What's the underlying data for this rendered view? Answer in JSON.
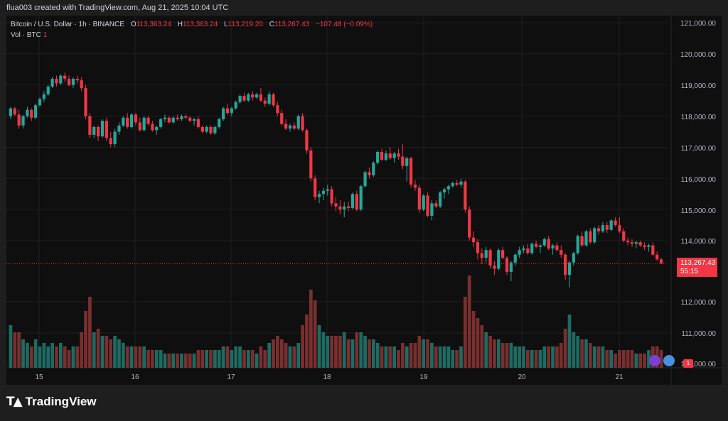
{
  "header": {
    "caption": "flua003 created with TradingView.com, Aug 21, 2025 10:04 UTC"
  },
  "legend": {
    "symbol": "Bitcoin / U.S. Dollar · 1h · BINANCE",
    "open_label": "O",
    "open": "113,363.24",
    "high_label": "H",
    "high": "113,363.24",
    "low_label": "L",
    "low": "113,219.20",
    "close_label": "C",
    "close": "113,267.43",
    "change": "−107.48 (−0.09%)",
    "volume_label": "Vol · BTC",
    "volume_value": "1"
  },
  "last_price": {
    "price": "113,267.43",
    "countdown": "55:15"
  },
  "volume_badge": "1",
  "footer": {
    "brand": "TradingView"
  },
  "colors": {
    "up": "#26a69a",
    "down": "#f23645",
    "vol_up": "#1e6b63",
    "vol_down": "#7a2f2f",
    "background": "#0f0f0f"
  },
  "chart_data": {
    "type": "candlestick",
    "timeframe": "1h",
    "y_axis_ticks": [
      "121,000.00",
      "120,000.00",
      "119,000.00",
      "118,000.00",
      "117,000.00",
      "116,000.00",
      "115,000.00",
      "114,000.00",
      "112,000.00",
      "111,000.00",
      "110,000.00"
    ],
    "price_range": [
      112600,
      121000
    ],
    "x_axis_ticks": [
      "15",
      "16",
      "17",
      "18",
      "19",
      "20",
      "21"
    ],
    "last_price": 113267.43,
    "candles": [
      [
        118000,
        118300,
        117900,
        118250,
        0.6
      ],
      [
        118250,
        118300,
        118000,
        118050,
        0.5
      ],
      [
        118050,
        118200,
        117600,
        117700,
        0.5
      ],
      [
        117700,
        118050,
        117600,
        118000,
        0.4
      ],
      [
        118000,
        118300,
        117950,
        118200,
        0.35
      ],
      [
        118200,
        118250,
        117850,
        117950,
        0.3
      ],
      [
        117950,
        118400,
        117900,
        118350,
        0.4
      ],
      [
        118350,
        118600,
        118300,
        118550,
        0.3
      ],
      [
        118550,
        118800,
        118450,
        118700,
        0.35
      ],
      [
        118700,
        119000,
        118650,
        118950,
        0.3
      ],
      [
        118950,
        119250,
        118900,
        119200,
        0.35
      ],
      [
        119200,
        119300,
        118950,
        119050,
        0.3
      ],
      [
        119050,
        119350,
        119000,
        119300,
        0.35
      ],
      [
        119300,
        119400,
        119100,
        119200,
        0.3
      ],
      [
        119200,
        119300,
        118950,
        119000,
        0.25
      ],
      [
        119000,
        119250,
        118900,
        119200,
        0.3
      ],
      [
        119200,
        119300,
        119050,
        119150,
        0.3
      ],
      [
        119150,
        119250,
        118800,
        118900,
        0.5
      ],
      [
        118900,
        119000,
        117900,
        118000,
        0.8
      ],
      [
        118000,
        118100,
        117300,
        117400,
        1.0
      ],
      [
        117400,
        117700,
        117300,
        117650,
        0.5
      ],
      [
        117650,
        117700,
        117200,
        117350,
        0.55
      ],
      [
        117350,
        117900,
        117300,
        117850,
        0.45
      ],
      [
        117850,
        117950,
        117200,
        117300,
        0.45
      ],
      [
        117300,
        117500,
        117000,
        117100,
        0.4
      ],
      [
        117100,
        117600,
        117000,
        117500,
        0.45
      ],
      [
        117500,
        117800,
        117400,
        117700,
        0.4
      ],
      [
        117700,
        118000,
        117650,
        117950,
        0.35
      ],
      [
        117950,
        118100,
        117600,
        117650,
        0.3
      ],
      [
        117650,
        118100,
        117600,
        118050,
        0.3
      ],
      [
        118050,
        118100,
        117700,
        117800,
        0.3
      ],
      [
        117800,
        117950,
        117500,
        117550,
        0.3
      ],
      [
        117550,
        118000,
        117500,
        117950,
        0.3
      ],
      [
        117950,
        118000,
        117700,
        117750,
        0.25
      ],
      [
        117750,
        117850,
        117500,
        117550,
        0.25
      ],
      [
        117550,
        117700,
        117400,
        117650,
        0.25
      ],
      [
        117650,
        117950,
        117600,
        117900,
        0.25
      ],
      [
        117900,
        118050,
        117800,
        117950,
        0.2
      ],
      [
        117950,
        118000,
        117750,
        117800,
        0.2
      ],
      [
        117800,
        118000,
        117750,
        117950,
        0.2
      ],
      [
        117950,
        118050,
        117850,
        117900,
        0.2
      ],
      [
        117900,
        118050,
        117850,
        118000,
        0.2
      ],
      [
        118000,
        118050,
        117900,
        117950,
        0.2
      ],
      [
        117950,
        118000,
        117800,
        117850,
        0.2
      ],
      [
        117850,
        117950,
        117700,
        117900,
        0.2
      ],
      [
        117900,
        118000,
        117600,
        117650,
        0.25
      ],
      [
        117650,
        117700,
        117450,
        117500,
        0.25
      ],
      [
        117500,
        117700,
        117450,
        117650,
        0.25
      ],
      [
        117650,
        117700,
        117400,
        117450,
        0.25
      ],
      [
        117450,
        117700,
        117400,
        117650,
        0.25
      ],
      [
        117650,
        117950,
        117600,
        117900,
        0.25
      ],
      [
        117900,
        118300,
        117850,
        118250,
        0.3
      ],
      [
        118250,
        118400,
        118050,
        118100,
        0.3
      ],
      [
        118100,
        118300,
        118000,
        118250,
        0.25
      ],
      [
        118250,
        118500,
        118200,
        118450,
        0.3
      ],
      [
        118450,
        118700,
        118400,
        118650,
        0.3
      ],
      [
        118650,
        118750,
        118450,
        118500,
        0.25
      ],
      [
        118500,
        118750,
        118450,
        118700,
        0.25
      ],
      [
        118700,
        118800,
        118500,
        118600,
        0.25
      ],
      [
        118600,
        118750,
        118550,
        118700,
        0.2
      ],
      [
        118700,
        118900,
        118450,
        118500,
        0.3
      ],
      [
        118500,
        118600,
        118300,
        118400,
        0.25
      ],
      [
        118400,
        118800,
        118350,
        118700,
        0.35
      ],
      [
        118700,
        118750,
        118300,
        118350,
        0.4
      ],
      [
        118350,
        118450,
        118000,
        118100,
        0.45
      ],
      [
        118100,
        118200,
        117700,
        117750,
        0.4
      ],
      [
        117750,
        117900,
        117550,
        117600,
        0.35
      ],
      [
        117600,
        117750,
        117500,
        117700,
        0.3
      ],
      [
        117700,
        117800,
        117550,
        117600,
        0.3
      ],
      [
        117600,
        118050,
        117550,
        118000,
        0.35
      ],
      [
        118000,
        118100,
        117500,
        117550,
        0.6
      ],
      [
        117550,
        117600,
        116800,
        116900,
        0.75
      ],
      [
        116900,
        117000,
        115900,
        116000,
        1.1
      ],
      [
        116000,
        116100,
        115300,
        115400,
        0.95
      ],
      [
        115400,
        115600,
        115200,
        115500,
        0.6
      ],
      [
        115500,
        115700,
        115300,
        115600,
        0.5
      ],
      [
        115600,
        115800,
        115450,
        115650,
        0.45
      ],
      [
        115650,
        115750,
        115100,
        115200,
        0.45
      ],
      [
        115200,
        115400,
        114950,
        115100,
        0.45
      ],
      [
        115100,
        115300,
        114850,
        115000,
        0.45
      ],
      [
        115000,
        115250,
        114750,
        115100,
        0.5
      ],
      [
        115100,
        115250,
        114950,
        115050,
        0.4
      ],
      [
        115050,
        115550,
        115000,
        115500,
        0.4
      ],
      [
        115500,
        115600,
        114950,
        115000,
        0.5
      ],
      [
        115000,
        115800,
        114950,
        115750,
        0.5
      ],
      [
        115750,
        116250,
        115700,
        116200,
        0.45
      ],
      [
        116200,
        116350,
        116000,
        116100,
        0.4
      ],
      [
        116100,
        116550,
        116050,
        116500,
        0.4
      ],
      [
        116500,
        116900,
        116450,
        116850,
        0.35
      ],
      [
        116850,
        116950,
        116550,
        116600,
        0.3
      ],
      [
        116600,
        116900,
        116550,
        116800,
        0.3
      ],
      [
        116800,
        117000,
        116600,
        116650,
        0.3
      ],
      [
        116650,
        116850,
        116500,
        116800,
        0.3
      ],
      [
        116800,
        116950,
        116600,
        116700,
        0.25
      ],
      [
        116700,
        117100,
        116300,
        116400,
        0.35
      ],
      [
        116400,
        116700,
        115900,
        116650,
        0.3
      ],
      [
        116650,
        116700,
        115700,
        115800,
        0.35
      ],
      [
        115800,
        115950,
        115600,
        115700,
        0.35
      ],
      [
        115700,
        115800,
        114900,
        115000,
        0.45
      ],
      [
        115000,
        115500,
        114950,
        115450,
        0.4
      ],
      [
        115450,
        115550,
        114750,
        114800,
        0.4
      ],
      [
        114800,
        115300,
        114650,
        115200,
        0.35
      ],
      [
        115200,
        115300,
        115050,
        115100,
        0.3
      ],
      [
        115100,
        115600,
        115050,
        115550,
        0.3
      ],
      [
        115550,
        115700,
        115350,
        115650,
        0.3
      ],
      [
        115650,
        115800,
        115500,
        115750,
        0.3
      ],
      [
        115750,
        115900,
        115700,
        115850,
        0.25
      ],
      [
        115850,
        115950,
        115750,
        115800,
        0.25
      ],
      [
        115800,
        116000,
        115700,
        115900,
        0.3
      ],
      [
        115900,
        115950,
        114900,
        115000,
        1.0
      ],
      [
        115000,
        115100,
        114000,
        114100,
        1.3
      ],
      [
        114100,
        114300,
        113800,
        113950,
        0.8
      ],
      [
        113950,
        114050,
        113400,
        113600,
        0.7
      ],
      [
        113600,
        113750,
        113250,
        113450,
        0.6
      ],
      [
        113450,
        113800,
        113300,
        113700,
        0.5
      ],
      [
        113700,
        113750,
        113100,
        113200,
        0.45
      ],
      [
        113200,
        113350,
        112900,
        113100,
        0.4
      ],
      [
        113100,
        113750,
        113050,
        113700,
        0.4
      ],
      [
        113700,
        113800,
        113400,
        113450,
        0.35
      ],
      [
        113450,
        113500,
        112900,
        113000,
        0.35
      ],
      [
        113000,
        113350,
        112700,
        113300,
        0.35
      ],
      [
        113300,
        113600,
        113200,
        113550,
        0.3
      ],
      [
        113550,
        113800,
        113450,
        113700,
        0.3
      ],
      [
        113700,
        113850,
        113600,
        113750,
        0.3
      ],
      [
        113750,
        113900,
        113550,
        113600,
        0.25
      ],
      [
        113600,
        113950,
        113550,
        113900,
        0.25
      ],
      [
        113900,
        114000,
        113750,
        113800,
        0.25
      ],
      [
        113800,
        113900,
        113600,
        113850,
        0.25
      ],
      [
        113850,
        114100,
        113800,
        114050,
        0.3
      ],
      [
        114050,
        114150,
        113700,
        113750,
        0.3
      ],
      [
        113750,
        113900,
        113550,
        113850,
        0.3
      ],
      [
        113850,
        113950,
        113650,
        113700,
        0.3
      ],
      [
        113700,
        113850,
        113450,
        113550,
        0.35
      ],
      [
        113550,
        113600,
        112750,
        112900,
        0.55
      ],
      [
        112900,
        113350,
        112500,
        113300,
        0.75
      ],
      [
        113300,
        113650,
        113200,
        113600,
        0.5
      ],
      [
        113600,
        114200,
        113550,
        114150,
        0.45
      ],
      [
        114150,
        114300,
        113800,
        113850,
        0.4
      ],
      [
        113850,
        114350,
        113800,
        114300,
        0.4
      ],
      [
        114300,
        114400,
        113900,
        113950,
        0.35
      ],
      [
        113950,
        114450,
        113900,
        114400,
        0.3
      ],
      [
        114400,
        114500,
        114200,
        114300,
        0.3
      ],
      [
        114300,
        114600,
        114250,
        114500,
        0.3
      ],
      [
        114500,
        114600,
        114250,
        114350,
        0.25
      ],
      [
        114350,
        114700,
        114300,
        114650,
        0.25
      ],
      [
        114650,
        114750,
        114450,
        114500,
        0.2
      ],
      [
        114500,
        114750,
        114250,
        114300,
        0.25
      ],
      [
        114300,
        114400,
        113950,
        114000,
        0.25
      ],
      [
        114000,
        114100,
        113850,
        113950,
        0.25
      ],
      [
        113950,
        114050,
        113800,
        113900,
        0.25
      ],
      [
        113900,
        114000,
        113750,
        113950,
        0.2
      ],
      [
        113950,
        114000,
        113800,
        113850,
        0.2
      ],
      [
        113850,
        113950,
        113700,
        113800,
        0.2
      ],
      [
        113800,
        113900,
        113650,
        113850,
        0.25
      ],
      [
        113850,
        113950,
        113500,
        113550,
        0.3
      ],
      [
        113550,
        113650,
        113350,
        113400,
        0.3
      ],
      [
        113400,
        113450,
        113250,
        113270,
        0.25
      ]
    ]
  }
}
